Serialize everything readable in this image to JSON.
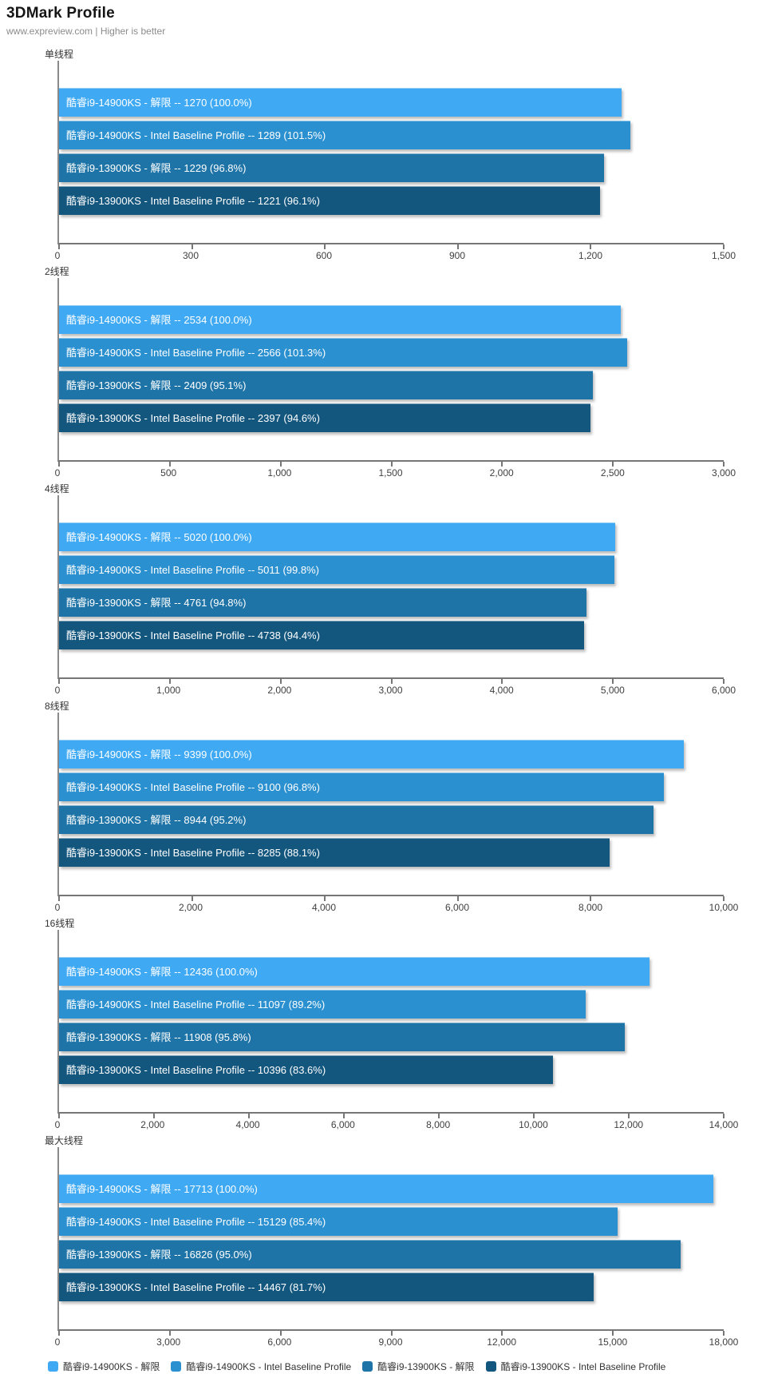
{
  "header": {
    "title": "3DMark Profile",
    "subtitle": "www.expreview.com | Higher is better"
  },
  "palette": [
    "#3FA9F3",
    "#2B90D0",
    "#1F74A7",
    "#13567E"
  ],
  "axis_color": "#767676",
  "bar_text_color": "#ffffff",
  "legend": {
    "items": [
      {
        "label": "酷睿i9-14900KS - 解限",
        "color": "#3FA9F3"
      },
      {
        "label": "酷睿i9-14900KS - Intel Baseline Profile",
        "color": "#2B90D0"
      },
      {
        "label": "酷睿i9-13900KS - 解限",
        "color": "#1F74A7"
      },
      {
        "label": "酷睿i9-13900KS - Intel Baseline Profile",
        "color": "#13567E"
      }
    ]
  },
  "chart_data": [
    {
      "type": "bar",
      "title": "单线程",
      "orientation": "horizontal",
      "categories": [
        "酷睿i9-14900KS - 解限",
        "酷睿i9-14900KS - Intel Baseline Profile",
        "酷睿i9-13900KS - 解限",
        "酷睿i9-13900KS - Intel Baseline Profile"
      ],
      "values": [
        1270,
        1289,
        1229,
        1221
      ],
      "percents": [
        "100.0%",
        "101.5%",
        "96.8%",
        "96.1%"
      ],
      "xlim": [
        0,
        1500
      ],
      "xticks": [
        0,
        300,
        600,
        900,
        1200,
        1500
      ],
      "xtick_labels": [
        "0",
        "300",
        "600",
        "900",
        "1,200",
        "1,500"
      ]
    },
    {
      "type": "bar",
      "title": "2线程",
      "orientation": "horizontal",
      "categories": [
        "酷睿i9-14900KS - 解限",
        "酷睿i9-14900KS - Intel Baseline Profile",
        "酷睿i9-13900KS - 解限",
        "酷睿i9-13900KS - Intel Baseline Profile"
      ],
      "values": [
        2534,
        2566,
        2409,
        2397
      ],
      "percents": [
        "100.0%",
        "101.3%",
        "95.1%",
        "94.6%"
      ],
      "xlim": [
        0,
        3000
      ],
      "xticks": [
        0,
        500,
        1000,
        1500,
        2000,
        2500,
        3000
      ],
      "xtick_labels": [
        "0",
        "500",
        "1,000",
        "1,500",
        "2,000",
        "2,500",
        "3,000"
      ]
    },
    {
      "type": "bar",
      "title": "4线程",
      "orientation": "horizontal",
      "categories": [
        "酷睿i9-14900KS - 解限",
        "酷睿i9-14900KS - Intel Baseline Profile",
        "酷睿i9-13900KS - 解限",
        "酷睿i9-13900KS - Intel Baseline Profile"
      ],
      "values": [
        5020,
        5011,
        4761,
        4738
      ],
      "percents": [
        "100.0%",
        "99.8%",
        "94.8%",
        "94.4%"
      ],
      "xlim": [
        0,
        6000
      ],
      "xticks": [
        0,
        1000,
        2000,
        3000,
        4000,
        5000,
        6000
      ],
      "xtick_labels": [
        "0",
        "1,000",
        "2,000",
        "3,000",
        "4,000",
        "5,000",
        "6,000"
      ]
    },
    {
      "type": "bar",
      "title": "8线程",
      "orientation": "horizontal",
      "categories": [
        "酷睿i9-14900KS - 解限",
        "酷睿i9-14900KS - Intel Baseline Profile",
        "酷睿i9-13900KS - 解限",
        "酷睿i9-13900KS - Intel Baseline Profile"
      ],
      "values": [
        9399,
        9100,
        8944,
        8285
      ],
      "percents": [
        "100.0%",
        "96.8%",
        "95.2%",
        "88.1%"
      ],
      "xlim": [
        0,
        10000
      ],
      "xticks": [
        0,
        2000,
        4000,
        6000,
        8000,
        10000
      ],
      "xtick_labels": [
        "0",
        "2,000",
        "4,000",
        "6,000",
        "8,000",
        "10,000"
      ]
    },
    {
      "type": "bar",
      "title": "16线程",
      "orientation": "horizontal",
      "categories": [
        "酷睿i9-14900KS - 解限",
        "酷睿i9-14900KS - Intel Baseline Profile",
        "酷睿i9-13900KS - 解限",
        "酷睿i9-13900KS - Intel Baseline Profile"
      ],
      "values": [
        12436,
        11097,
        11908,
        10396
      ],
      "percents": [
        "100.0%",
        "89.2%",
        "95.8%",
        "83.6%"
      ],
      "xlim": [
        0,
        14000
      ],
      "xticks": [
        0,
        2000,
        4000,
        6000,
        8000,
        10000,
        12000,
        14000
      ],
      "xtick_labels": [
        "0",
        "2,000",
        "4,000",
        "6,000",
        "8,000",
        "10,000",
        "12,000",
        "14,000"
      ]
    },
    {
      "type": "bar",
      "title": "最大线程",
      "orientation": "horizontal",
      "categories": [
        "酷睿i9-14900KS - 解限",
        "酷睿i9-14900KS - Intel Baseline Profile",
        "酷睿i9-13900KS - 解限",
        "酷睿i9-13900KS - Intel Baseline Profile"
      ],
      "values": [
        17713,
        15129,
        16826,
        14467
      ],
      "percents": [
        "100.0%",
        "85.4%",
        "95.0%",
        "81.7%"
      ],
      "xlim": [
        0,
        18000
      ],
      "xticks": [
        0,
        3000,
        6000,
        9000,
        12000,
        15000,
        18000
      ],
      "xtick_labels": [
        "0",
        "3,000",
        "6,000",
        "9,000",
        "12,000",
        "15,000",
        "18,000"
      ]
    }
  ]
}
